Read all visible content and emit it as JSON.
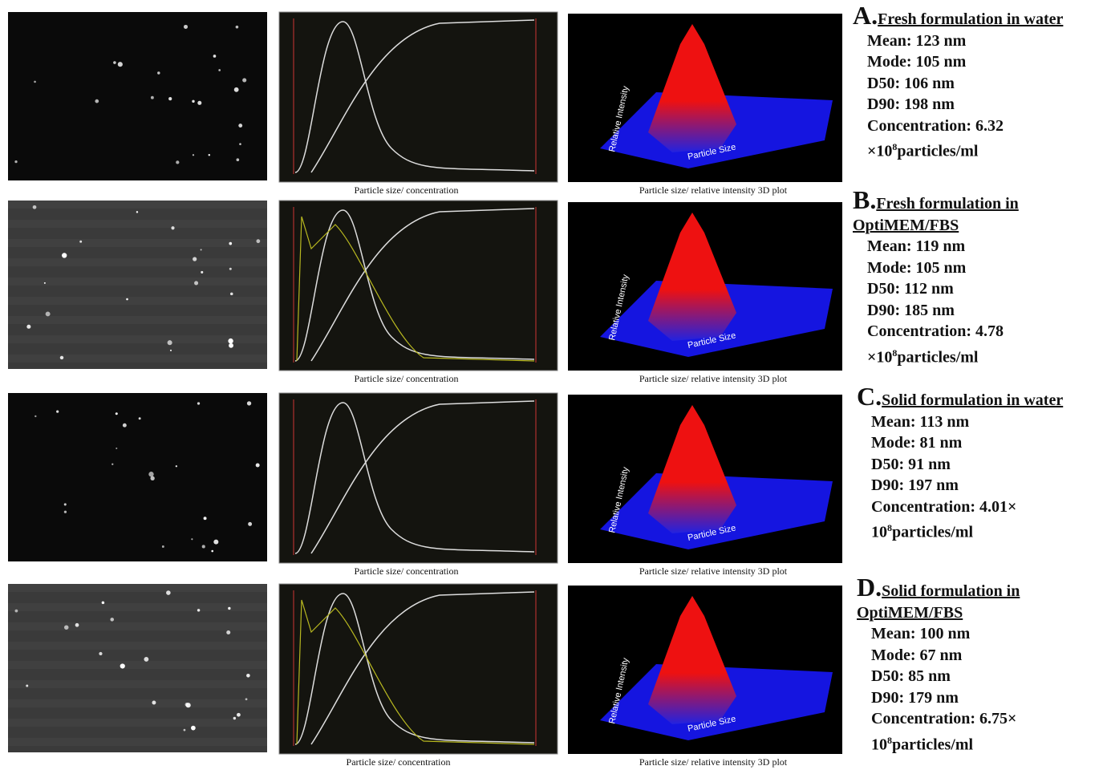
{
  "plot3d_axis_labels": {
    "x": "Particle Size",
    "y": "Relative Intensity"
  },
  "panels": [
    {
      "letter": "A.",
      "title": "Fresh formulation  in water",
      "stats": [
        "Mean: 123 nm",
        "Mode: 105 nm",
        "D50: 106 nm",
        "D90: 198 nm"
      ],
      "concentration": {
        "text": "Concentration: 6.32 ×10",
        "exponent": "8",
        "unit": "particles/ml"
      },
      "chart_caption": "Particle size/ concentration",
      "plot_caption": "Particle size/ relative intensity 3D plot"
    },
    {
      "letter": "B.",
      "title": "Fresh formulation in OptiMEM/FBS",
      "stats": [
        "Mean: 119 nm",
        "Mode: 105 nm",
        "D50: 112 nm",
        "D90: 185 nm"
      ],
      "concentration": {
        "text": "Concentration: 4.78 ×10",
        "exponent": "8",
        "unit": "particles/ml"
      },
      "chart_caption": "Particle size/ concentration",
      "plot_caption": "Particle size/ relative intensity 3D plot"
    },
    {
      "letter": "C.",
      "title": "Solid formulation in water",
      "stats": [
        "Mean: 113 nm",
        "Mode: 81 nm",
        "D50: 91 nm",
        "D90: 197 nm"
      ],
      "concentration": {
        "text": "Concentration: 4.01× 10",
        "exponent": "8",
        "unit": "particles/ml"
      },
      "chart_caption": "Particle size/ concentration",
      "plot_caption": "Particle size/ relative intensity 3D plot"
    },
    {
      "letter": "D.",
      "title": "Solid formulation in OptiMEM/FBS",
      "stats": [
        "Mean: 100 nm",
        "Mode: 67 nm",
        "D50: 85 nm",
        "D90: 179 nm"
      ],
      "concentration": {
        "text": "Concentration: 6.75× 10",
        "exponent": "8",
        "unit": "particles/ml"
      },
      "chart_caption": "Particle size/ concentration",
      "plot_caption": "Particle size/ relative intensity 3D plot"
    }
  ]
}
